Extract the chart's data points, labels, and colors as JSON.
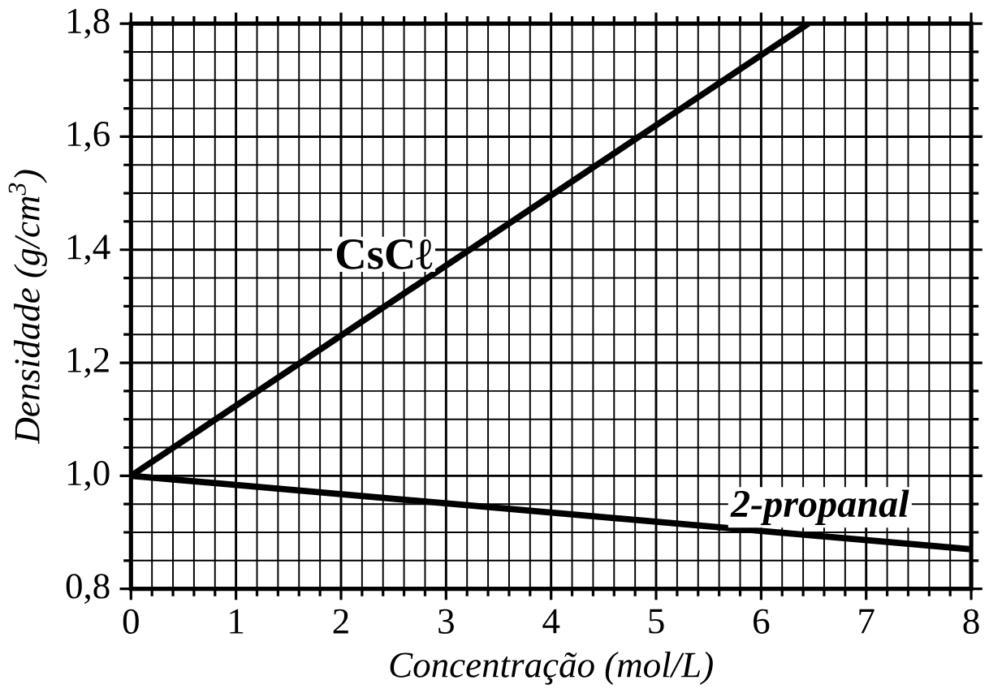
{
  "chart_data": {
    "type": "line",
    "xlabel": "Concentração (mol/L)",
    "ylabel": "Densidade (g/cm$^{3}$)",
    "xlim": [
      0,
      8
    ],
    "ylim": [
      0.8,
      1.8
    ],
    "xticks": [
      0,
      1,
      2,
      3,
      4,
      5,
      6,
      7,
      8
    ],
    "yticks": [
      {
        "value": 0.8,
        "label": "0,8"
      },
      {
        "value": 1.0,
        "label": "1,0"
      },
      {
        "value": 1.2,
        "label": "1,2"
      },
      {
        "value": 1.4,
        "label": "1,4"
      },
      {
        "value": 1.6,
        "label": "1,6"
      },
      {
        "value": 1.8,
        "label": "1,8"
      }
    ],
    "grid": true,
    "marker": "none",
    "line_style": "solid",
    "series": [
      {
        "name": "CsCℓ",
        "color": "#000000",
        "x": [
          0,
          6.45
        ],
        "values": [
          1.0,
          1.8
        ]
      },
      {
        "name": "2-propanal",
        "color": "#000000",
        "x": [
          0,
          8
        ],
        "values": [
          1.0,
          0.87
        ]
      }
    ]
  }
}
